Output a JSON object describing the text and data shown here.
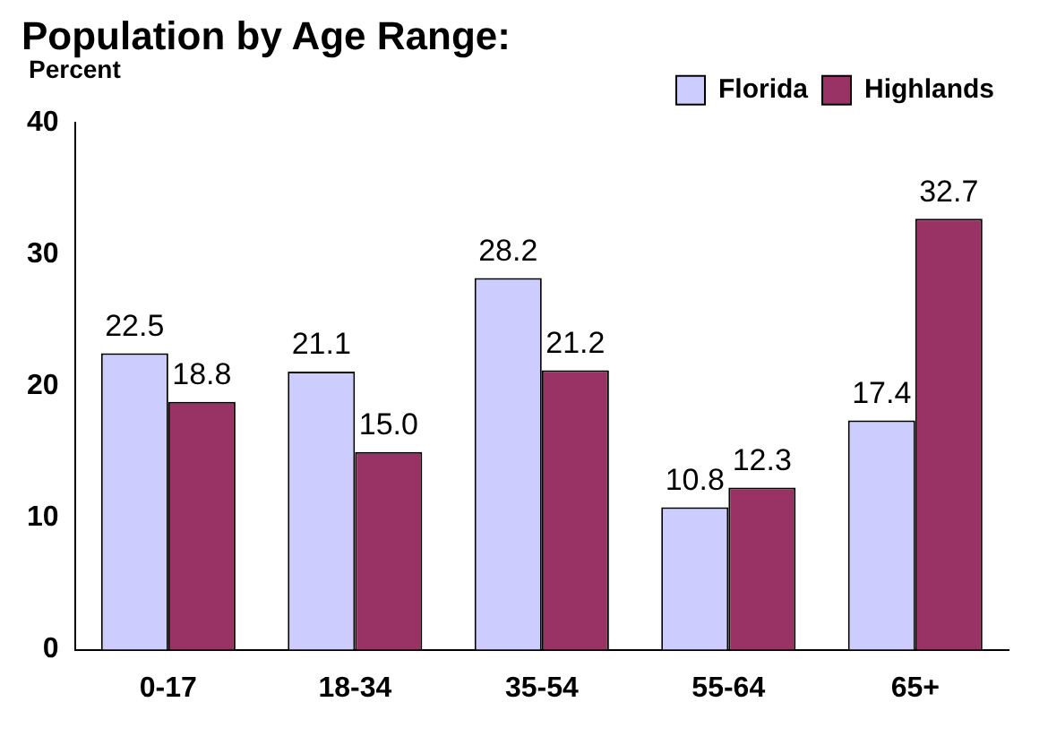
{
  "chart_data": {
    "type": "bar",
    "title": "Population by Age Range:",
    "ylabel": "Percent",
    "categories": [
      "0-17",
      "18-34",
      "35-54",
      "55-64",
      "65+"
    ],
    "series": [
      {
        "name": "Florida",
        "color": "#ccccff",
        "values": [
          22.5,
          21.1,
          28.2,
          10.8,
          17.4
        ],
        "value_labels": [
          "22.5",
          "21.1",
          "28.2",
          "10.8",
          "17.4"
        ]
      },
      {
        "name": "Highlands",
        "color": "#993366",
        "values": [
          18.8,
          15.0,
          21.2,
          12.3,
          32.7
        ],
        "value_labels": [
          "18.8",
          "15.0",
          "21.2",
          "12.3",
          "32.7"
        ]
      }
    ],
    "ylim": [
      0,
      40
    ],
    "yticks": [
      0,
      10,
      20,
      30,
      40
    ],
    "grid": false,
    "legend": "top right"
  }
}
